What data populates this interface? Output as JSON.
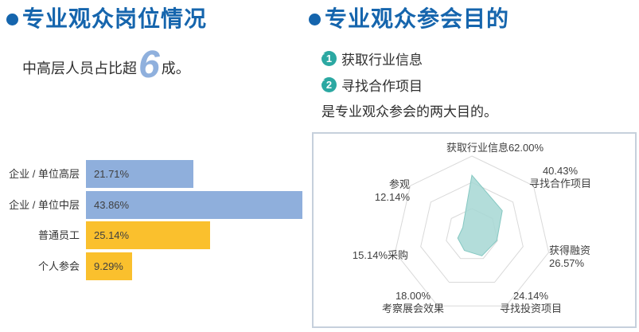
{
  "left": {
    "title": "专业观众岗位情况",
    "subtitle_prefix": "中高层人员占比超",
    "subtitle_number": "6",
    "subtitle_suffix": "成。"
  },
  "right": {
    "title": "专业观众参会目的",
    "items": [
      {
        "number": "1",
        "label": "获取行业信息"
      },
      {
        "number": "2",
        "label": "寻找合作项目"
      }
    ],
    "conclusion": "是专业观众参会的两大目的。"
  },
  "colors": {
    "title_blue": "#1565ad",
    "accent_light_blue": "#8fb0dd",
    "bar_blue": "#8fafdc",
    "bar_yellow": "#fac02d",
    "radar_fill": "#a6d7d3",
    "radar_stroke": "#85c8c2",
    "badge_teal": "#2ba8a2",
    "grid_gray": "#d9d9d9",
    "box_border": "#c6d0dc"
  },
  "chart_data": [
    {
      "type": "bar",
      "title": "专业观众岗位情况",
      "orientation": "horizontal",
      "categories": [
        "企业 / 单位高层",
        "企业 / 单位中层",
        "普通员工",
        "个人参会"
      ],
      "values": [
        21.71,
        43.86,
        25.14,
        9.29
      ],
      "value_labels": [
        "21.71%",
        "43.86%",
        "25.14%",
        "9.29%"
      ],
      "bar_colors": [
        "#8fafdc",
        "#8fafdc",
        "#fac02d",
        "#fac02d"
      ],
      "xlim": [
        0,
        43.86
      ],
      "grid": false,
      "legend": false
    },
    {
      "type": "radar",
      "title": "专业观众参会目的",
      "max": 82,
      "rings": 3,
      "grid": true,
      "indicators": [
        {
          "name": "获取行业信息",
          "value": 62.0,
          "label": "获取行业信息62.00%"
        },
        {
          "name": "寻找合作项目",
          "value": 40.43,
          "label": "40.43%\n寻找合作项目"
        },
        {
          "name": "获得融资",
          "value": 26.57,
          "label": "获得融资\n26.57%"
        },
        {
          "name": "寻找投资项目",
          "value": 24.14,
          "label": "24.14%\n寻找投资项目"
        },
        {
          "name": "考察展会效果",
          "value": 18.0,
          "label": "18.00%\n考察展会效果"
        },
        {
          "name": "采购",
          "value": 15.14,
          "label": "15.14%采购"
        },
        {
          "name": "参观",
          "value": 12.14,
          "label": "参观\n12.14%"
        }
      ]
    }
  ]
}
